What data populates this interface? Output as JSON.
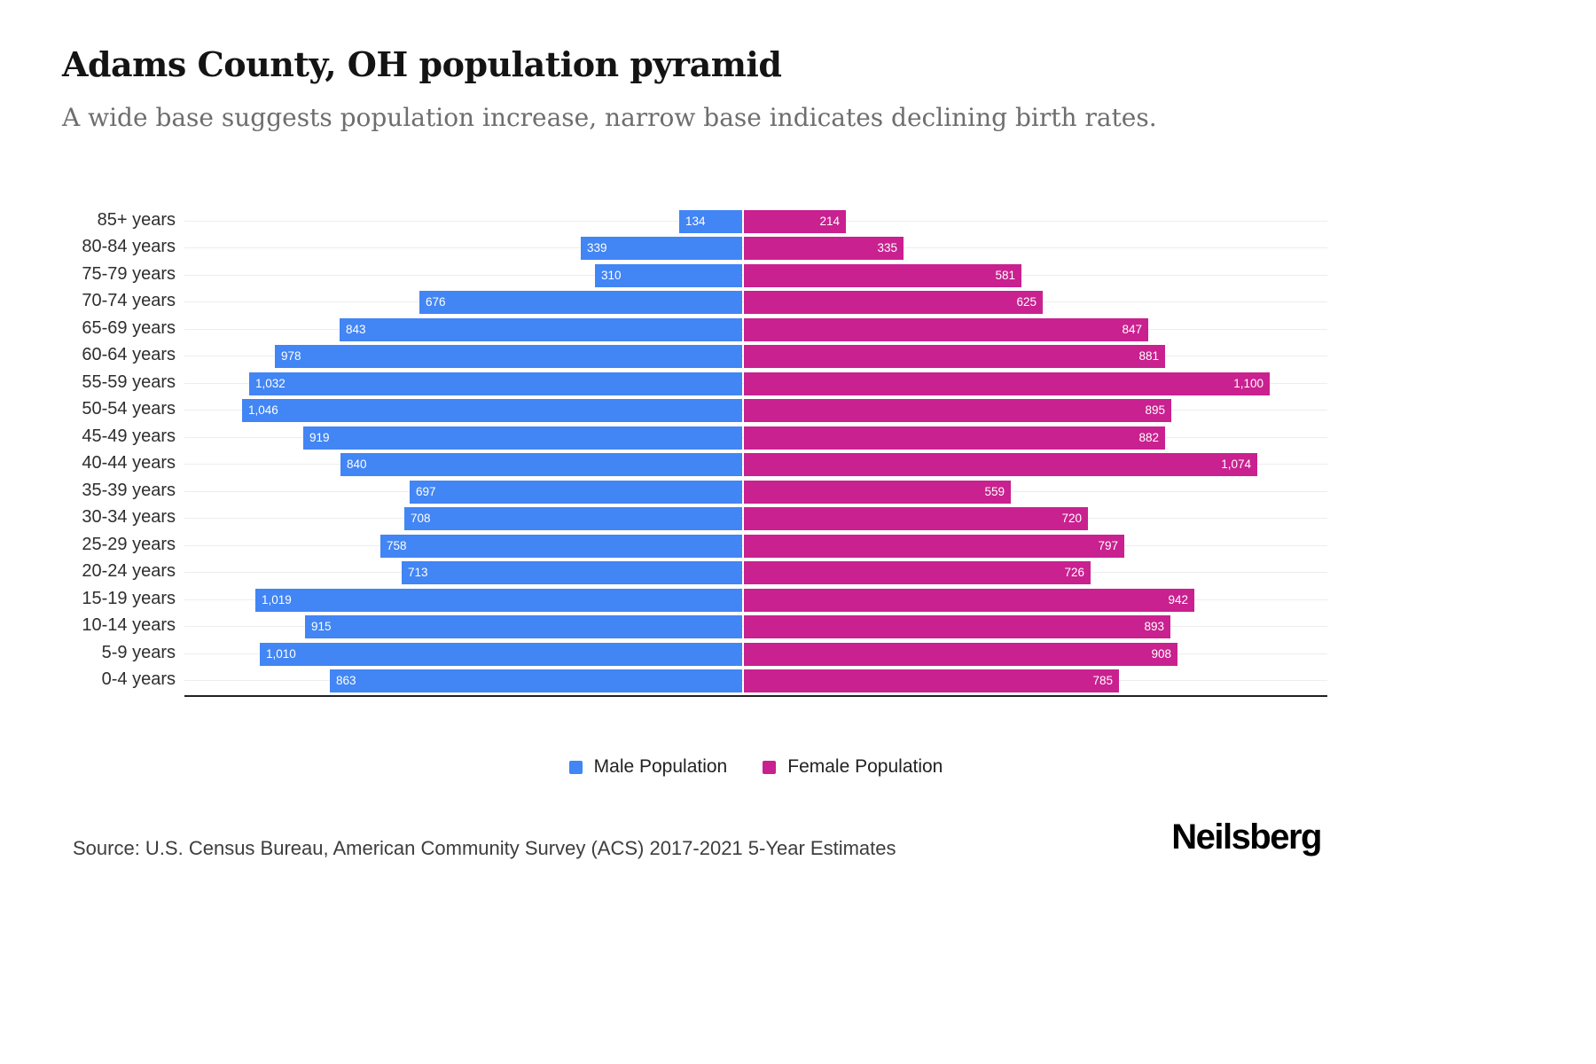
{
  "header": {
    "title": "Adams County, OH population pyramid",
    "subtitle": "A wide base suggests population increase, narrow base indicates declining birth rates."
  },
  "chart_data": {
    "type": "bar",
    "variant": "population_pyramid",
    "orientation": "horizontal",
    "title": "Adams County, OH population pyramid",
    "categories": [
      "85+ years",
      "80-84 years",
      "75-79 years",
      "70-74 years",
      "65-69 years",
      "60-64 years",
      "55-59 years",
      "50-54 years",
      "45-49 years",
      "40-44 years",
      "35-39 years",
      "30-34 years",
      "25-29 years",
      "20-24 years",
      "15-19 years",
      "10-14 years",
      "5-9 years",
      "0-4 years"
    ],
    "series": [
      {
        "name": "Male Population",
        "side": "left",
        "color": "#4285F4",
        "values": [
          134,
          339,
          310,
          676,
          843,
          978,
          1032,
          1046,
          919,
          840,
          697,
          708,
          758,
          713,
          1019,
          915,
          1010,
          863
        ]
      },
      {
        "name": "Female Population",
        "side": "right",
        "color": "#C9218F",
        "values": [
          214,
          335,
          581,
          625,
          847,
          881,
          1100,
          895,
          882,
          1074,
          559,
          720,
          797,
          726,
          942,
          893,
          908,
          785
        ]
      }
    ],
    "value_axis_max_each_side": 1200,
    "grid": "faint horizontal row lines",
    "legend_position": "bottom-center",
    "value_labels": "inside bar ends, white text, thousands separated with commas"
  },
  "legend": {
    "items": [
      {
        "label": "Male Population",
        "color": "#4285F4"
      },
      {
        "label": "Female Population",
        "color": "#C9218F"
      }
    ]
  },
  "footer": {
    "source": "Source: U.S. Census Bureau, American Community Survey (ACS) 2017-2021 5-Year Estimates",
    "brand": "Neilsberg"
  }
}
